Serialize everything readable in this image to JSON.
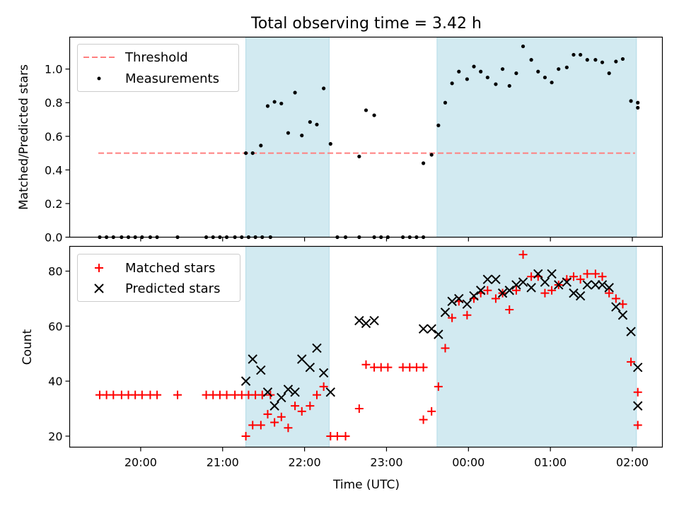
{
  "figure": {
    "title": "Total observing time = 3.42 h"
  },
  "chart_data": [
    {
      "type": "scatter",
      "panel": "top",
      "xlabel": "",
      "ylabel": "Matched/Predicted stars",
      "xlim": [
        "19:08",
        "02:22"
      ],
      "ylim": [
        0,
        1.19
      ],
      "yticks": [
        0.0,
        0.2,
        0.4,
        0.6,
        0.8,
        1.0
      ],
      "ytick_labels": [
        "0.0",
        "0.2",
        "0.4",
        "0.6",
        "0.8",
        "1.0"
      ],
      "shaded_intervals": [
        [
          "21:17",
          "22:18"
        ],
        [
          "23:37",
          "02:03"
        ]
      ],
      "shade_color": "#add8e6",
      "legend": {
        "placement": "upper left",
        "entries": [
          {
            "label": "Threshold",
            "style": "dashed-line",
            "color": "#ff7f7f"
          },
          {
            "label": "Measurements",
            "style": "dot",
            "color": "#000000"
          }
        ]
      },
      "threshold": {
        "value": 0.5,
        "x_start": "19:29",
        "x_end": "02:02",
        "color": "#ff7f7f"
      },
      "series": [
        {
          "name": "Measurements",
          "color": "#000000",
          "points": [
            [
              "19:30",
              0.0
            ],
            [
              "19:35",
              0.0
            ],
            [
              "19:40",
              0.0
            ],
            [
              "19:46",
              0.0
            ],
            [
              "19:51",
              0.0
            ],
            [
              "19:56",
              0.0
            ],
            [
              "20:01",
              0.0
            ],
            [
              "20:07",
              0.0
            ],
            [
              "20:12",
              0.0
            ],
            [
              "20:27",
              0.0
            ],
            [
              "20:48",
              0.0
            ],
            [
              "20:53",
              0.0
            ],
            [
              "20:58",
              0.0
            ],
            [
              "21:03",
              0.0
            ],
            [
              "21:09",
              0.0
            ],
            [
              "21:14",
              0.0
            ],
            [
              "21:19",
              0.0
            ],
            [
              "21:24",
              0.0
            ],
            [
              "21:29",
              0.0
            ],
            [
              "21:35",
              0.0
            ],
            [
              "21:17",
              0.5
            ],
            [
              "21:22",
              0.5
            ],
            [
              "21:28",
              0.545
            ],
            [
              "21:33",
              0.78
            ],
            [
              "21:38",
              0.805
            ],
            [
              "21:43",
              0.795
            ],
            [
              "21:48",
              0.62
            ],
            [
              "21:53",
              0.86
            ],
            [
              "21:58",
              0.605
            ],
            [
              "22:04",
              0.685
            ],
            [
              "22:09",
              0.67
            ],
            [
              "22:14",
              0.885
            ],
            [
              "22:19",
              0.555
            ],
            [
              "22:24",
              0.0
            ],
            [
              "22:30",
              0.0
            ],
            [
              "22:40",
              0.0
            ],
            [
              "22:40",
              0.48
            ],
            [
              "22:45",
              0.755
            ],
            [
              "22:51",
              0.725
            ],
            [
              "22:51",
              0.0
            ],
            [
              "22:56",
              0.0
            ],
            [
              "23:01",
              0.0
            ],
            [
              "23:12",
              0.0
            ],
            [
              "23:17",
              0.0
            ],
            [
              "23:22",
              0.0
            ],
            [
              "23:27",
              0.0
            ],
            [
              "23:27",
              0.44
            ],
            [
              "23:33",
              0.49
            ],
            [
              "23:38",
              0.665
            ],
            [
              "23:43",
              0.8
            ],
            [
              "23:48",
              0.915
            ],
            [
              "23:53",
              0.985
            ],
            [
              "23:59",
              0.94
            ],
            [
              "00:04",
              1.015
            ],
            [
              "00:09",
              0.985
            ],
            [
              "00:14",
              0.95
            ],
            [
              "00:20",
              0.91
            ],
            [
              "00:25",
              1.0
            ],
            [
              "00:30",
              0.9
            ],
            [
              "00:35",
              0.975
            ],
            [
              "00:40",
              1.135
            ],
            [
              "00:46",
              1.055
            ],
            [
              "00:51",
              0.985
            ],
            [
              "00:56",
              0.95
            ],
            [
              "01:01",
              0.92
            ],
            [
              "01:06",
              1.0
            ],
            [
              "01:12",
              1.01
            ],
            [
              "01:17",
              1.085
            ],
            [
              "01:22",
              1.085
            ],
            [
              "01:27",
              1.055
            ],
            [
              "01:33",
              1.055
            ],
            [
              "01:38",
              1.04
            ],
            [
              "01:43",
              0.975
            ],
            [
              "01:48",
              1.045
            ],
            [
              "01:53",
              1.06
            ],
            [
              "01:59",
              0.81
            ],
            [
              "02:04",
              0.8
            ],
            [
              "02:04",
              0.77
            ]
          ]
        }
      ]
    },
    {
      "type": "scatter",
      "panel": "bottom",
      "xlabel": "Time (UTC)",
      "ylabel": "Count",
      "xlim": [
        "19:08",
        "02:22"
      ],
      "xticks": [
        "20:00",
        "21:00",
        "22:00",
        "23:00",
        "00:00",
        "01:00",
        "02:00"
      ],
      "ylim": [
        16,
        89
      ],
      "yticks": [
        20,
        40,
        60,
        80
      ],
      "ytick_labels": [
        "20",
        "40",
        "60",
        "80"
      ],
      "shaded_intervals": [
        [
          "21:17",
          "22:18"
        ],
        [
          "23:37",
          "02:03"
        ]
      ],
      "shade_color": "#add8e6",
      "legend": {
        "placement": "upper left",
        "entries": [
          {
            "label": "Matched stars",
            "style": "plus",
            "color": "#ff0000"
          },
          {
            "label": "Predicted stars",
            "style": "x",
            "color": "#000000"
          }
        ]
      },
      "series": [
        {
          "name": "Matched stars",
          "marker": "plus",
          "color": "#ff0000",
          "points": [
            [
              "19:30",
              35
            ],
            [
              "19:35",
              35
            ],
            [
              "19:40",
              35
            ],
            [
              "19:46",
              35
            ],
            [
              "19:51",
              35
            ],
            [
              "19:56",
              35
            ],
            [
              "20:01",
              35
            ],
            [
              "20:07",
              35
            ],
            [
              "20:12",
              35
            ],
            [
              "20:27",
              35
            ],
            [
              "20:48",
              35
            ],
            [
              "20:53",
              35
            ],
            [
              "20:58",
              35
            ],
            [
              "21:03",
              35
            ],
            [
              "21:09",
              35
            ],
            [
              "21:14",
              35
            ],
            [
              "21:19",
              35
            ],
            [
              "21:24",
              35
            ],
            [
              "21:29",
              35
            ],
            [
              "21:35",
              35
            ],
            [
              "21:17",
              20
            ],
            [
              "21:22",
              24
            ],
            [
              "21:28",
              24
            ],
            [
              "21:33",
              28
            ],
            [
              "21:38",
              25
            ],
            [
              "21:43",
              27
            ],
            [
              "21:48",
              23
            ],
            [
              "21:53",
              31
            ],
            [
              "21:58",
              29
            ],
            [
              "22:04",
              31
            ],
            [
              "22:09",
              35
            ],
            [
              "22:14",
              38
            ],
            [
              "22:19",
              20
            ],
            [
              "22:24",
              20
            ],
            [
              "22:30",
              20
            ],
            [
              "22:40",
              30
            ],
            [
              "22:45",
              46
            ],
            [
              "22:51",
              45
            ],
            [
              "22:56",
              45
            ],
            [
              "23:01",
              45
            ],
            [
              "23:12",
              45
            ],
            [
              "23:17",
              45
            ],
            [
              "23:22",
              45
            ],
            [
              "23:27",
              45
            ],
            [
              "23:27",
              26
            ],
            [
              "23:33",
              29
            ],
            [
              "23:38",
              38
            ],
            [
              "23:43",
              52
            ],
            [
              "23:48",
              63
            ],
            [
              "23:53",
              69
            ],
            [
              "23:59",
              64
            ],
            [
              "00:04",
              70
            ],
            [
              "00:09",
              72
            ],
            [
              "00:14",
              73
            ],
            [
              "00:20",
              70
            ],
            [
              "00:25",
              72
            ],
            [
              "00:30",
              66
            ],
            [
              "00:35",
              73
            ],
            [
              "00:40",
              86
            ],
            [
              "00:46",
              78
            ],
            [
              "00:51",
              78
            ],
            [
              "00:56",
              72
            ],
            [
              "01:01",
              73
            ],
            [
              "01:06",
              75
            ],
            [
              "01:12",
              77
            ],
            [
              "01:17",
              78
            ],
            [
              "01:22",
              77
            ],
            [
              "01:27",
              79
            ],
            [
              "01:33",
              79
            ],
            [
              "01:38",
              78
            ],
            [
              "01:43",
              72
            ],
            [
              "01:48",
              70
            ],
            [
              "01:53",
              68
            ],
            [
              "01:59",
              47
            ],
            [
              "02:04",
              36
            ],
            [
              "02:04",
              24
            ]
          ]
        },
        {
          "name": "Predicted stars",
          "marker": "x",
          "color": "#000000",
          "points": [
            [
              "21:17",
              40
            ],
            [
              "21:22",
              48
            ],
            [
              "21:28",
              44
            ],
            [
              "21:33",
              36
            ],
            [
              "21:38",
              31
            ],
            [
              "21:43",
              34
            ],
            [
              "21:48",
              37
            ],
            [
              "21:53",
              36
            ],
            [
              "21:58",
              48
            ],
            [
              "22:04",
              45
            ],
            [
              "22:09",
              52
            ],
            [
              "22:14",
              43
            ],
            [
              "22:19",
              36
            ],
            [
              "22:40",
              62
            ],
            [
              "22:45",
              61
            ],
            [
              "22:51",
              62
            ],
            [
              "23:27",
              59
            ],
            [
              "23:33",
              59
            ],
            [
              "23:38",
              57
            ],
            [
              "23:43",
              65
            ],
            [
              "23:48",
              69
            ],
            [
              "23:53",
              70
            ],
            [
              "23:59",
              68
            ],
            [
              "00:04",
              71
            ],
            [
              "00:09",
              73
            ],
            [
              "00:14",
              77
            ],
            [
              "00:20",
              77
            ],
            [
              "00:25",
              72
            ],
            [
              "00:30",
              73
            ],
            [
              "00:35",
              75
            ],
            [
              "00:40",
              76
            ],
            [
              "00:46",
              74
            ],
            [
              "00:51",
              79
            ],
            [
              "00:56",
              76
            ],
            [
              "01:01",
              79
            ],
            [
              "01:06",
              75
            ],
            [
              "01:12",
              76
            ],
            [
              "01:17",
              72
            ],
            [
              "01:22",
              71
            ],
            [
              "01:27",
              75
            ],
            [
              "01:33",
              75
            ],
            [
              "01:38",
              75
            ],
            [
              "01:43",
              74
            ],
            [
              "01:48",
              67
            ],
            [
              "01:53",
              64
            ],
            [
              "01:59",
              58
            ],
            [
              "02:04",
              45
            ],
            [
              "02:04",
              31
            ]
          ]
        }
      ]
    }
  ]
}
